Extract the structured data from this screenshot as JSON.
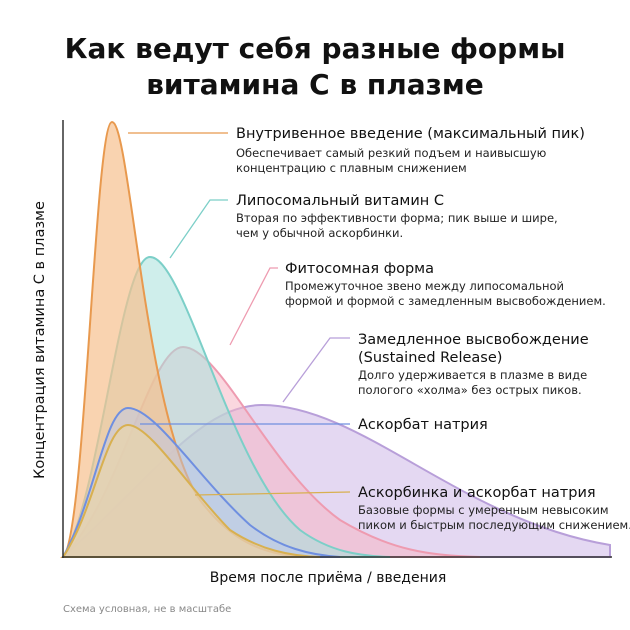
{
  "header": {
    "title": [
      "Как ведут себя разные формы",
      "витамина С в плазме"
    ]
  },
  "axes": {
    "y_label": "Концентрация витамина С в плазме",
    "x_label": "Время после приёма / введения"
  },
  "footnote": "Схема условная, не в масштабе",
  "annotations": [
    {
      "heading": [
        "Внутривенное введение (максимальный пик)"
      ],
      "description": [
        "Обеспечивает самый резкий подъем и наивысшую",
        "концентрацию с плавным снижением"
      ]
    },
    {
      "heading": [
        "Липосомальный витамин С"
      ],
      "description": [
        "Вторая по эффективности форма; пик выше и шире,",
        "чем у обычной аскорбинки."
      ]
    },
    {
      "heading": [
        "Фитосомная форма"
      ],
      "description": [
        "Промежуточное звено между липосомальной",
        "формой и формой с замедленным высвобождением."
      ]
    },
    {
      "heading": [
        "Замедленное высвобождение",
        "(Sustained Release)"
      ],
      "description": [
        "Долго удерживается в плазме в виде",
        "пологого «холма» без острых пиков."
      ]
    },
    {
      "heading": [
        "Аскорбат натрия"
      ],
      "description": []
    },
    {
      "heading": [
        "Аскорбинка и аскорбат натрия"
      ],
      "description": [
        "Базовые формы с умеренным невысоким",
        "пиком и быстрым последующим снижением."
      ]
    }
  ]
}
